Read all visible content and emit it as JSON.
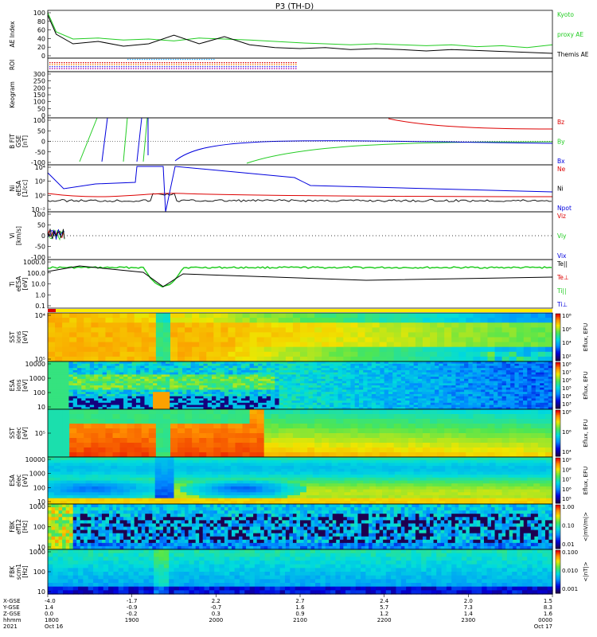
{
  "title": "P3 (TH-D)",
  "panels": [
    {
      "id": "ae",
      "ylabel": [
        "AE Index"
      ],
      "ticks": [
        "100",
        "80",
        "60",
        "40",
        "20",
        "0"
      ],
      "legend": [
        {
          "text": "Kyoto",
          "color": "#22cc22"
        },
        {
          "text": "proxy AE",
          "color": "#22cc22"
        },
        {
          "text": "Themis AE",
          "color": "#000000"
        }
      ]
    },
    {
      "id": "roi",
      "ylabel": [
        "ROI"
      ],
      "ticks": [],
      "legend": []
    },
    {
      "id": "keo",
      "ylabel": [
        "Keogram"
      ],
      "ticks": [
        "300",
        "250",
        "200",
        "150",
        "100",
        "50",
        "0"
      ],
      "legend": []
    },
    {
      "id": "bfit",
      "ylabel": [
        "B FIT",
        "GSE",
        "[nT]"
      ],
      "ticks": [
        "100",
        "50",
        "0",
        "-50",
        "-100"
      ],
      "legend": [
        {
          "text": "Bz",
          "color": "#dd0000"
        },
        {
          "text": "By",
          "color": "#22cc22"
        },
        {
          "text": "Bx",
          "color": "#0000dd"
        }
      ]
    },
    {
      "id": "ni",
      "ylabel": [
        "Ni",
        "eESA",
        "[1/cc]"
      ],
      "ticks": [
        "10⁴",
        "10²",
        "10⁰",
        "10⁻²"
      ],
      "legend": [
        {
          "text": "Ne",
          "color": "#dd0000"
        },
        {
          "text": "Ni",
          "color": "#000000"
        },
        {
          "text": "Npot",
          "color": "#0000dd"
        }
      ]
    },
    {
      "id": "vi",
      "ylabel": [
        "Vi",
        "[km/s]"
      ],
      "ticks": [
        "100",
        "50",
        "0",
        "-50",
        "-100"
      ],
      "legend": [
        {
          "text": "Viz",
          "color": "#dd0000"
        },
        {
          "text": "Viy",
          "color": "#22cc22"
        },
        {
          "text": "Vix",
          "color": "#0000dd"
        }
      ]
    },
    {
      "id": "ti",
      "ylabel": [
        "Ti",
        "eESA",
        "[eV]"
      ],
      "ticks": [
        "1000.0",
        "100.0",
        "10.0",
        "1.0",
        "0.1"
      ],
      "legend": [
        {
          "text": "Te||",
          "color": "#000000"
        },
        {
          "text": "Te⊥",
          "color": "#dd0000"
        },
        {
          "text": "Ti||",
          "color": "#22cc22"
        },
        {
          "text": "Ti⊥",
          "color": "#0000dd"
        }
      ]
    },
    {
      "id": "sst1",
      "ylabel": [
        "SST",
        "ions",
        "[eV]"
      ],
      "ticks": [
        "10⁴",
        "10⁵"
      ],
      "legend": []
    },
    {
      "id": "esa1",
      "ylabel": [
        "ESA",
        "ions",
        "[eV]"
      ],
      "ticks": [
        "10000",
        "1000",
        "100",
        "10"
      ],
      "legend": []
    },
    {
      "id": "sst2",
      "ylabel": [
        "SST",
        "elec",
        "[eV]"
      ],
      "ticks": [
        "10⁵"
      ],
      "legend": []
    },
    {
      "id": "esa2",
      "ylabel": [
        "ESA",
        "elec",
        "[eV]"
      ],
      "ticks": [
        "10000",
        "1000",
        "100",
        "10"
      ],
      "legend": []
    },
    {
      "id": "fbk1",
      "ylabel": [
        "FBK",
        "eff12",
        "[Hz]"
      ],
      "ticks": [
        "1000",
        "100",
        "10"
      ],
      "legend": []
    },
    {
      "id": "fbk2",
      "ylabel": [
        "FBK",
        "scm1",
        "[Hz]"
      ],
      "ticks": [
        "1000",
        "100",
        "10"
      ],
      "legend": []
    }
  ],
  "colorbars": [
    {
      "id": "cb-sst1",
      "ticks": [
        "10⁸",
        "10⁶",
        "10⁴",
        "10²"
      ],
      "label": "Eflux, EFU"
    },
    {
      "id": "cb-esa1",
      "ticks": [
        "10⁸",
        "10⁷",
        "10⁶",
        "10⁵",
        "10⁴",
        "10³"
      ],
      "label": "Eflux, EFU"
    },
    {
      "id": "cb-sst2",
      "ticks": [
        "10⁸",
        "10⁶",
        "10⁴"
      ],
      "label": "Eflux, EFU"
    },
    {
      "id": "cb-esa2",
      "ticks": [
        "10⁹",
        "10⁸",
        "10⁷",
        "10⁶",
        "10⁵"
      ],
      "label": "Eflux, EFU"
    },
    {
      "id": "cb-fbk1",
      "ticks": [
        "1.00",
        "0.10",
        "0.01"
      ],
      "label": "<|mV/m|>"
    },
    {
      "id": "cb-fbk2",
      "ticks": [
        "0.100",
        "0.010",
        "0.001"
      ],
      "label": "<|nT|>"
    }
  ],
  "x_axis": {
    "row_labels": [
      "X-GSE",
      "Y-GSE",
      "Z-GSE",
      "hhmm",
      "2021"
    ],
    "columns": [
      {
        "x": "-4.0",
        "y": "1.4",
        "z": "0.0",
        "t": "1800",
        "d": "Oct 16"
      },
      {
        "x": "-1.7",
        "y": "-0.9",
        "z": "-0.2",
        "t": "1900",
        "d": ""
      },
      {
        "x": "2.2",
        "y": "-0.7",
        "z": "0.3",
        "t": "2000",
        "d": ""
      },
      {
        "x": "2.7",
        "y": "1.6",
        "z": "0.9",
        "t": "2100",
        "d": ""
      },
      {
        "x": "2.4",
        "y": "5.7",
        "z": "1.2",
        "t": "2200",
        "d": ""
      },
      {
        "x": "2.0",
        "y": "7.3",
        "z": "1.4",
        "t": "2300",
        "d": ""
      },
      {
        "x": "1.5",
        "y": "8.3",
        "z": "1.6",
        "t": "0000",
        "d": "Oct 17"
      }
    ]
  },
  "chart_data": {
    "type": "line",
    "title": "P3 (TH-D)",
    "xlabel": "hhmm",
    "x_ticks": [
      "1800",
      "1900",
      "2000",
      "2100",
      "2200",
      "2300",
      "0000"
    ],
    "xlim": [
      0,
      6
    ],
    "series_ae": [
      {
        "name": "Kyoto proxy AE",
        "color": "#22cc22",
        "x": [
          0,
          0.1,
          0.3,
          0.6,
          0.9,
          1.2,
          1.5,
          1.8,
          2.1,
          2.4,
          2.7,
          3.0,
          3.3,
          3.6,
          3.9,
          4.2,
          4.5,
          4.8,
          5.1,
          5.4,
          5.7,
          6
        ],
        "values": [
          95,
          55,
          40,
          42,
          38,
          40,
          36,
          42,
          40,
          38,
          35,
          32,
          30,
          28,
          30,
          28,
          26,
          28,
          24,
          26,
          22,
          28
        ]
      },
      {
        "name": "Themis AE",
        "color": "#000000",
        "x": [
          0,
          0.1,
          0.3,
          0.6,
          0.9,
          1.2,
          1.5,
          1.8,
          2.1,
          2.4,
          2.7,
          3.0,
          3.3,
          3.6,
          3.9,
          4.2,
          4.5,
          4.8,
          5.1,
          5.4,
          5.7,
          6
        ],
        "values": [
          90,
          50,
          30,
          35,
          25,
          30,
          48,
          30,
          45,
          28,
          22,
          20,
          22,
          18,
          20,
          18,
          15,
          18,
          16,
          14,
          12,
          10
        ]
      }
    ],
    "ylim_ae": [
      0,
      100
    ]
  }
}
